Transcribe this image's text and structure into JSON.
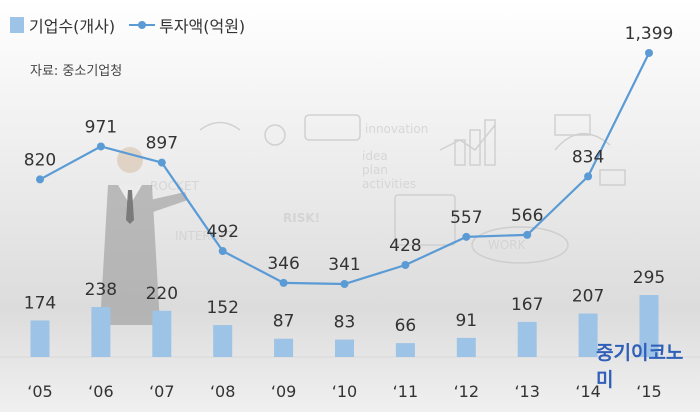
{
  "legend": {
    "bar_label": "기업수(개사)",
    "line_label": "투자액(억원)"
  },
  "source": "자료: 중소기업청",
  "brand": "중기이코노미",
  "chart_data": {
    "type": "bar",
    "categories": [
      "‘05",
      "‘06",
      "‘07",
      "‘08",
      "‘09",
      "‘10",
      "‘11",
      "‘12",
      "‘13",
      "‘14",
      "‘15"
    ],
    "series": [
      {
        "name": "기업수(개사)",
        "type": "bar",
        "values": [
          174,
          238,
          220,
          152,
          87,
          83,
          66,
          91,
          167,
          207,
          295
        ],
        "labels": [
          "174",
          "238",
          "220",
          "152",
          "87",
          "83",
          "66",
          "91",
          "167",
          "207",
          "295"
        ],
        "color": "#9dc3e6"
      },
      {
        "name": "투자액(억원)",
        "type": "line",
        "values": [
          820,
          971,
          897,
          492,
          346,
          341,
          428,
          557,
          566,
          834,
          1399
        ],
        "labels": [
          "820",
          "971",
          "897",
          "492",
          "346",
          "341",
          "428",
          "557",
          "566",
          "834",
          "1,399"
        ],
        "color": "#5b9bd5"
      }
    ],
    "grid": false,
    "legend_position": "top-left"
  }
}
